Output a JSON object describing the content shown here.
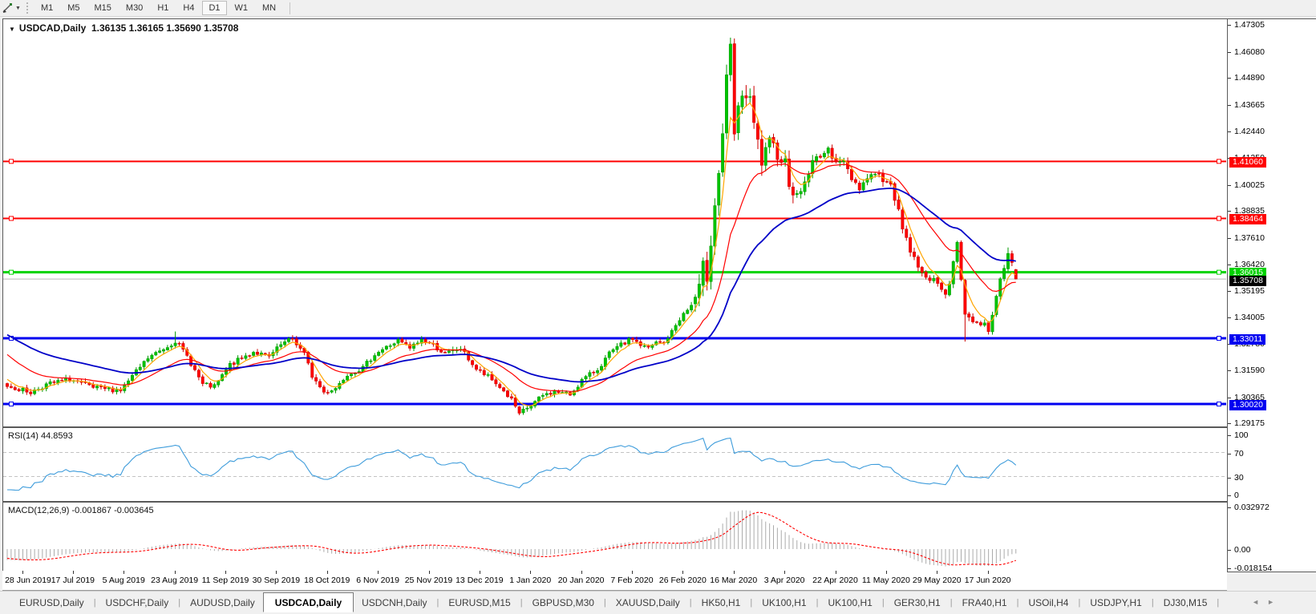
{
  "toolbar": {
    "timeframes": [
      "M1",
      "M5",
      "M15",
      "M30",
      "H1",
      "H4",
      "D1",
      "W1",
      "MN"
    ],
    "active_timeframe": "D1"
  },
  "chart": {
    "title_symbol": "USDCAD,Daily",
    "title_ohlc": "1.36135 1.36165 1.35690 1.35708",
    "dropdown_glyph": "▼"
  },
  "rsi": {
    "label": "RSI(14) 44.8593",
    "axis": [
      {
        "v": 100,
        "t": "100"
      },
      {
        "v": 70,
        "t": "70"
      },
      {
        "v": 30,
        "t": "30"
      },
      {
        "v": 0,
        "t": "0"
      }
    ],
    "levels": [
      70,
      30
    ]
  },
  "macd": {
    "label": "MACD(12,26,9) -0.001867 -0.003645",
    "axis": [
      {
        "v": 0.032972,
        "t": "0.032972"
      },
      {
        "v": 0,
        "t": "0.00"
      },
      {
        "v": -0.018154,
        "t": "-0.018154"
      }
    ]
  },
  "price_axis_ticks": [
    "1.47305",
    "1.46080",
    "1.44890",
    "1.43665",
    "1.42440",
    "1.41250",
    "1.40025",
    "1.38835",
    "1.37610",
    "1.36420",
    "1.35195",
    "1.34005",
    "1.32780",
    "1.31590",
    "1.30365",
    "1.29175"
  ],
  "levels": [
    {
      "price": 1.4106,
      "label": "1.41060",
      "color": "#FF0000",
      "width": 2
    },
    {
      "price": 1.38464,
      "label": "1.38464",
      "color": "#FF0000",
      "width": 2
    },
    {
      "price": 1.36015,
      "label": "1.36015",
      "color": "#00D300",
      "width": 3
    },
    {
      "price": 1.33011,
      "label": "1.33011",
      "color": "#0000F0",
      "width": 3
    },
    {
      "price": 1.3002,
      "label": "1.30020",
      "color": "#0000F0",
      "width": 3
    }
  ],
  "current_price": {
    "price": 1.35708,
    "label": "1.35708",
    "line_color": "#b8b8b8",
    "label_bg": "#000000"
  },
  "date_ticks": [
    "28 Jun 2019",
    "17 Jul 2019",
    "5 Aug 2019",
    "23 Aug 2019",
    "11 Sep 2019",
    "30 Sep 2019",
    "18 Oct 2019",
    "6 Nov 2019",
    "25 Nov 2019",
    "13 Dec 2019",
    "1 Jan 2020",
    "20 Jan 2020",
    "7 Feb 2020",
    "26 Feb 2020",
    "16 Mar 2020",
    "3 Apr 2020",
    "22 Apr 2020",
    "11 May 2020",
    "29 May 2020",
    "17 Jun 2020"
  ],
  "tabs": [
    "EURUSD,Daily",
    "USDCHF,Daily",
    "AUDUSD,Daily",
    "USDCAD,Daily",
    "USDCNH,Daily",
    "EURUSD,M15",
    "GBPUSD,M30",
    "XAUUSD,Daily",
    "HK50,H1",
    "UK100,H1",
    "UK100,H1",
    "GER30,H1",
    "FRA40,H1",
    "USOil,H4",
    "USDJPY,H1",
    "DJ30,M15"
  ],
  "active_tab_index": 3,
  "tab_nav": {
    "left": "◄",
    "right": "►"
  },
  "colors": {
    "bull": "#00C400",
    "bull_edge": "#009900",
    "bear": "#FF0000",
    "bear_edge": "#CC0000",
    "ma_fast": "#FFA500",
    "ma_mid": "#FF0000",
    "ma_slow": "#0000C8",
    "rsi_line": "#3E9CDB",
    "rsi_level": "#c3c3c3",
    "macd_hist": "#ABABAB",
    "macd_signal": "#FF0000"
  },
  "chart_data": {
    "type": "candlestick",
    "symbol": "USDCAD",
    "timeframe": "Daily",
    "bars": 259,
    "ylim": [
      1.29073,
      1.47527
    ],
    "last_bar": {
      "open": 1.36135,
      "high": 1.36165,
      "low": 1.3569,
      "close": 1.35708
    },
    "x_labels_every_bars": 13,
    "x_first_label_bar": 4,
    "price_path": [
      [
        0,
        1.3085
      ],
      [
        6,
        1.3055
      ],
      [
        10,
        1.309
      ],
      [
        16,
        1.3115
      ],
      [
        22,
        1.3075
      ],
      [
        29,
        1.3065
      ],
      [
        36,
        1.321
      ],
      [
        41,
        1.3265
      ],
      [
        43,
        1.329
      ],
      [
        46,
        1.322
      ],
      [
        50,
        1.309
      ],
      [
        53,
        1.308
      ],
      [
        57,
        1.318
      ],
      [
        63,
        1.324
      ],
      [
        67,
        1.3215
      ],
      [
        70,
        1.327
      ],
      [
        73,
        1.33
      ],
      [
        76,
        1.323
      ],
      [
        78,
        1.313
      ],
      [
        81,
        1.3055
      ],
      [
        84,
        1.3075
      ],
      [
        87,
        1.314
      ],
      [
        91,
        1.3165
      ],
      [
        94,
        1.323
      ],
      [
        100,
        1.329
      ],
      [
        103,
        1.3255
      ],
      [
        106,
        1.3295
      ],
      [
        109,
        1.327
      ],
      [
        112,
        1.323
      ],
      [
        116,
        1.3255
      ],
      [
        120,
        1.316
      ],
      [
        123,
        1.3125
      ],
      [
        126,
        1.308
      ],
      [
        129,
        1.302
      ],
      [
        131,
        1.296
      ],
      [
        134,
        1.2995
      ],
      [
        137,
        1.304
      ],
      [
        140,
        1.306
      ],
      [
        144,
        1.3045
      ],
      [
        147,
        1.311
      ],
      [
        151,
        1.316
      ],
      [
        154,
        1.323
      ],
      [
        157,
        1.327
      ],
      [
        160,
        1.33
      ],
      [
        162,
        1.327
      ],
      [
        164,
        1.3255
      ],
      [
        166,
        1.328
      ],
      [
        168,
        1.328
      ],
      [
        170,
        1.333
      ],
      [
        172,
        1.339
      ],
      [
        175,
        1.345
      ],
      [
        177,
        1.352
      ],
      [
        178,
        1.362
      ],
      [
        179,
        1.3585
      ],
      [
        180,
        1.375
      ],
      [
        181,
        1.392
      ],
      [
        182,
        1.405
      ],
      [
        183,
        1.424
      ],
      [
        184,
        1.45
      ],
      [
        185,
        1.464
      ],
      [
        186,
        1.423
      ],
      [
        187,
        1.433
      ],
      [
        188,
        1.442
      ],
      [
        190,
        1.437
      ],
      [
        191,
        1.427
      ],
      [
        193,
        1.41
      ],
      [
        195,
        1.418
      ],
      [
        197,
        1.415
      ],
      [
        199,
        1.41
      ],
      [
        200,
        1.402
      ],
      [
        202,
        1.3945
      ],
      [
        204,
        1.401
      ],
      [
        206,
        1.41
      ],
      [
        208,
        1.414
      ],
      [
        210,
        1.415
      ],
      [
        212,
        1.412
      ],
      [
        214,
        1.41
      ],
      [
        216,
        1.403
      ],
      [
        218,
        1.399
      ],
      [
        220,
        1.403
      ],
      [
        222,
        1.406
      ],
      [
        224,
        1.402
      ],
      [
        226,
        1.399
      ],
      [
        228,
        1.39
      ],
      [
        229,
        1.379
      ],
      [
        231,
        1.37
      ],
      [
        233,
        1.362
      ],
      [
        235,
        1.359
      ],
      [
        237,
        1.356
      ],
      [
        239,
        1.353
      ],
      [
        240,
        1.35
      ],
      [
        241,
        1.356
      ],
      [
        243,
        1.374
      ],
      [
        244,
        1.356
      ],
      [
        245,
        1.342
      ],
      [
        246,
        1.339
      ],
      [
        248,
        1.338
      ],
      [
        250,
        1.336
      ],
      [
        251,
        1.3345
      ],
      [
        252,
        1.342
      ],
      [
        253,
        1.348
      ],
      [
        254,
        1.356
      ],
      [
        255,
        1.362
      ],
      [
        256,
        1.3685
      ],
      [
        257,
        1.364
      ],
      [
        258,
        1.35708
      ]
    ],
    "forced_closes": [
      [
        131,
        1.296
      ],
      [
        184,
        1.45
      ],
      [
        185,
        1.464
      ],
      [
        186,
        1.423
      ],
      [
        258,
        1.35708
      ]
    ],
    "wick_overrides": {
      "43": {
        "high": 1.3332
      },
      "185": {
        "high": 1.4669
      },
      "245": {
        "low": 1.3286
      },
      "251": {
        "low": 1.3318
      },
      "256": {
        "high": 1.3714
      }
    },
    "volatility": [
      {
        "from": 0,
        "to": 175,
        "v": 0.0028
      },
      {
        "from": 176,
        "to": 201,
        "v": 0.009
      },
      {
        "from": 202,
        "to": 232,
        "v": 0.0045
      },
      {
        "from": 233,
        "to": 258,
        "v": 0.0036
      }
    ],
    "prehistory": {
      "flat": 1.346,
      "flat_bars": 30,
      "decline_to": 1.309,
      "decline_bars": 20
    },
    "moving_averages": [
      {
        "name": "fast",
        "period": 5,
        "color": "#FFA500",
        "w": 1.2
      },
      {
        "name": "mid",
        "period": 20,
        "color": "#FF0000",
        "w": 1.2
      },
      {
        "name": "slow",
        "period": 45,
        "color": "#0000C8",
        "w": 1.8
      }
    ],
    "indicators": {
      "rsi": {
        "period": 14,
        "last": 44.8593
      },
      "macd": {
        "fast": 12,
        "slow": 26,
        "signal": 9,
        "last_main": -0.001867,
        "last_signal": -0.003645,
        "scale_max": 0.032972,
        "scale_min": -0.018154
      }
    }
  }
}
